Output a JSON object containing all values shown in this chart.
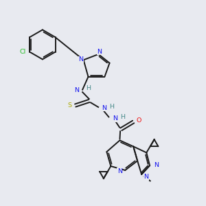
{
  "background_color": "#e8eaf0",
  "figsize": [
    3.0,
    3.0
  ],
  "dpi": 100,
  "line_color": "#1a1a1a",
  "line_width": 1.4,
  "N_color": "#1010ee",
  "O_color": "#ee1010",
  "S_color": "#aaaa00",
  "Cl_color": "#22bb22",
  "H_color": "#448888",
  "text_fontsize": 6.8,
  "xlim": [
    0,
    10
  ],
  "ylim": [
    0,
    10
  ]
}
